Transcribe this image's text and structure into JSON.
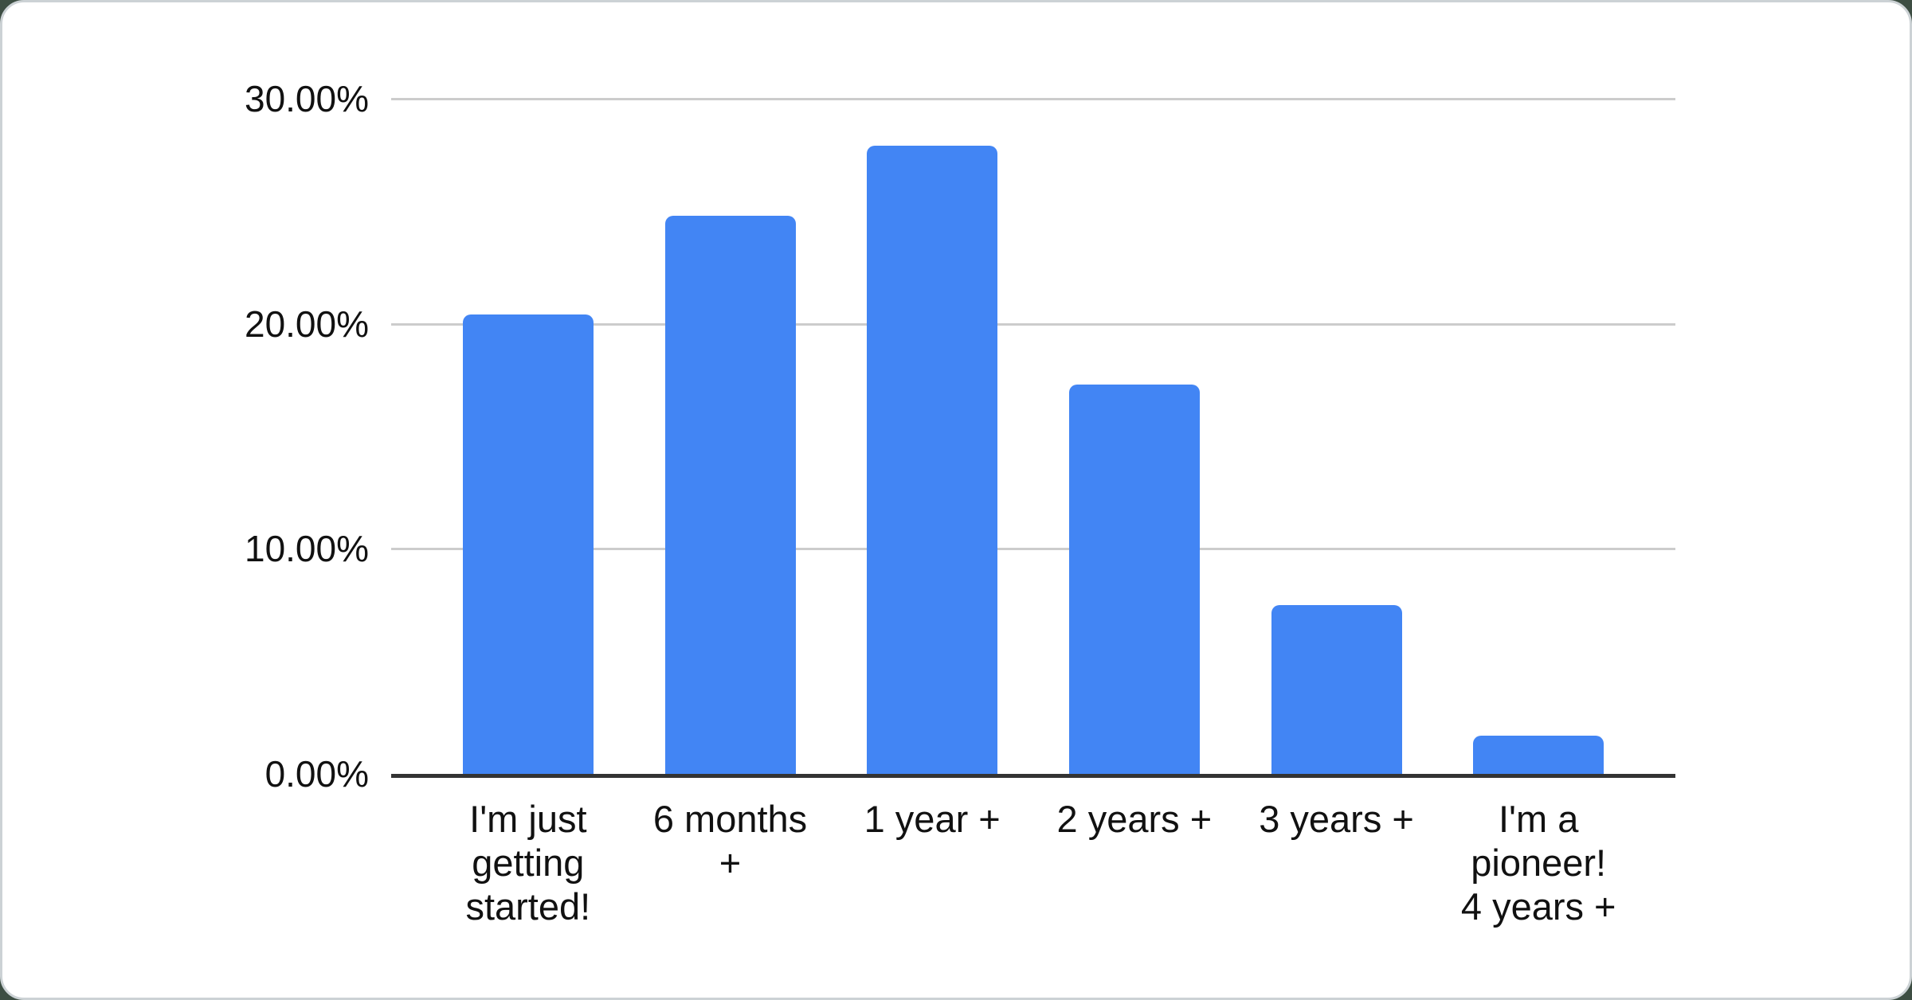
{
  "chart_data": {
    "type": "bar",
    "title": "",
    "xlabel": "",
    "ylabel": "",
    "categories": [
      "I'm just\ngetting\nstarted!",
      "6 months\n+",
      "1 year +",
      "2 years +",
      "3 years +",
      "I'm a\npioneer!\n4 years +"
    ],
    "values": [
      20.4,
      24.8,
      27.9,
      17.3,
      7.5,
      1.7
    ],
    "value_unit": "%",
    "ylim": [
      0,
      30
    ],
    "yticks": [
      0,
      10,
      20,
      30
    ],
    "ytick_labels": [
      "0.00%",
      "10.00%",
      "20.00%",
      "30.00%"
    ],
    "grid": true,
    "legend_position": "none"
  },
  "colors": {
    "bar": "#4285f4",
    "gridline": "#cccccc",
    "axis_line": "#333333",
    "label_text": "#111111",
    "card_background": "#ffffff",
    "card_border": "#ccd2d5",
    "page_background": "#3d4e43"
  }
}
